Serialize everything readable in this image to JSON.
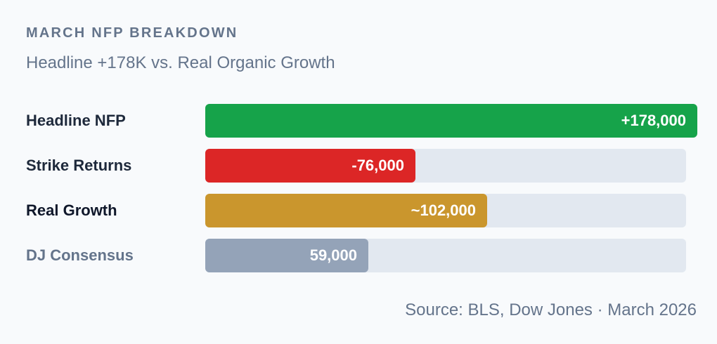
{
  "title": "MARCH NFP BREAKDOWN",
  "subtitle": "Headline +178K vs. Real Organic Growth",
  "source": "Source: BLS, Dow Jones · March 2026",
  "chart_data": {
    "type": "bar",
    "orientation": "horizontal",
    "title": "MARCH NFP BREAKDOWN",
    "subtitle": "Headline +178K vs. Real Organic Growth",
    "xlabel": "",
    "ylabel": "",
    "xlim": [
      0,
      174000
    ],
    "grid": false,
    "legend": "none",
    "bars": [
      {
        "label": "Headline NFP",
        "value": 178000,
        "display": "+178,000",
        "color": "#16a34a",
        "label_color": "#1e293b"
      },
      {
        "label": "Strike Returns",
        "value": 76000,
        "display": "-76,000",
        "color": "#dc2626",
        "label_color": "#1e293b"
      },
      {
        "label": "Real Growth",
        "value": 102000,
        "display": "~102,000",
        "color": "#ca962d",
        "label_color": "#0f172a"
      },
      {
        "label": "DJ Consensus",
        "value": 59000,
        "display": "59,000",
        "color": "#94a3b8",
        "label_color": "#64748b"
      }
    ]
  }
}
